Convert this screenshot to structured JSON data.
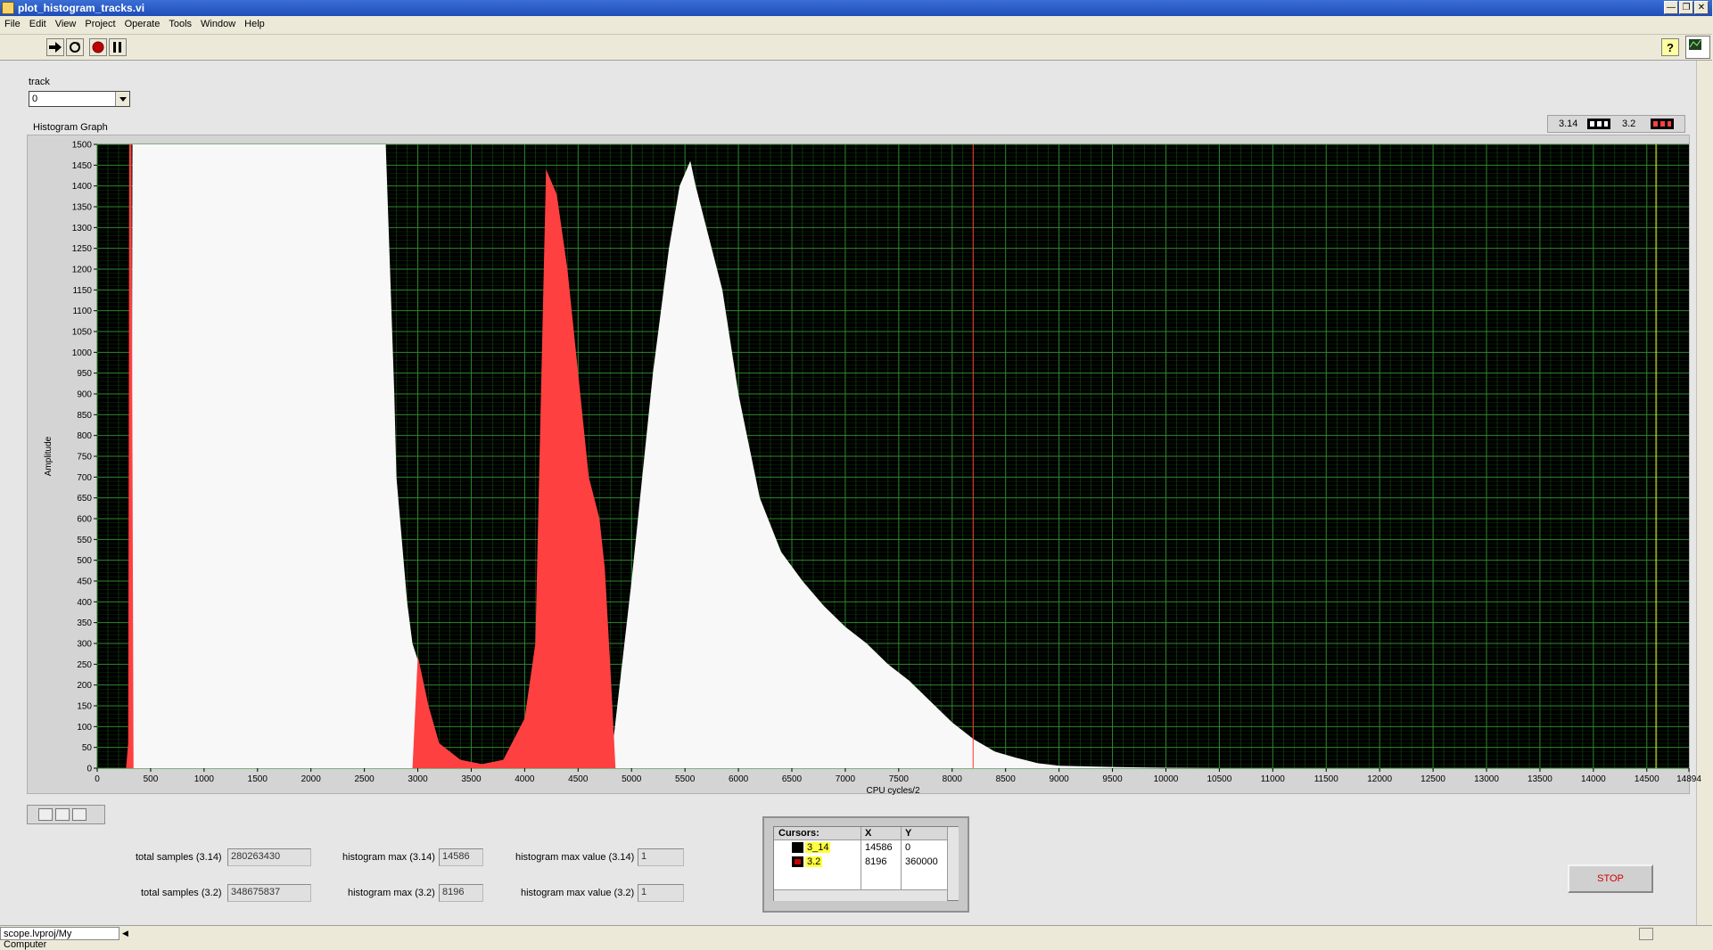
{
  "window": {
    "title": "plot_histogram_tracks.vi"
  },
  "menu": [
    "File",
    "Edit",
    "View",
    "Project",
    "Operate",
    "Tools",
    "Window",
    "Help"
  ],
  "track": {
    "label": "track",
    "value": "0"
  },
  "graph": {
    "label": "Histogram Graph",
    "legend": [
      {
        "name": "3.14"
      },
      {
        "name": "3.2"
      }
    ],
    "colors": {
      "bg": "#000000",
      "grid": "#1f6b1f",
      "s314": "#f8f8f8",
      "s32": "#ff4040",
      "cursor1": "#ff3030",
      "cursor2": "#ffff33"
    }
  },
  "chart_data": {
    "type": "bar",
    "title": "Histogram Graph",
    "xlabel": "CPU cycles/2",
    "ylabel": "Amplitude",
    "xlim": [
      0,
      14894
    ],
    "ylim": [
      0,
      1500
    ],
    "x_ticks": [
      "0",
      "500",
      "1000",
      "1500",
      "2000",
      "2500",
      "3000",
      "3500",
      "4000",
      "4500",
      "5000",
      "5500",
      "6000",
      "6500",
      "7000",
      "7500",
      "8000",
      "8500",
      "9000",
      "9500",
      "10000",
      "10500",
      "11000",
      "11500",
      "12000",
      "12500",
      "13000",
      "13500",
      "14000",
      "14500",
      "14894"
    ],
    "y_ticks": [
      "0",
      "50",
      "100",
      "150",
      "200",
      "250",
      "300",
      "350",
      "400",
      "450",
      "500",
      "550",
      "600",
      "650",
      "700",
      "750",
      "800",
      "850",
      "900",
      "950",
      "1000",
      "1050",
      "1100",
      "1150",
      "1200",
      "1250",
      "1300",
      "1350",
      "1400",
      "1450",
      "1500"
    ],
    "series": [
      {
        "name": "3.14",
        "x": [
          300,
          310,
          320,
          330,
          340,
          1000,
          2000,
          2700,
          2740,
          2780,
          2800,
          2900,
          2950,
          3000,
          3200,
          3400,
          3600,
          3800,
          4000,
          4200,
          4400,
          4600,
          4800,
          5000,
          5200,
          5350,
          5450,
          5550,
          5600,
          5700,
          5850,
          6000,
          6200,
          6400,
          6600,
          6800,
          7000,
          7200,
          7400,
          7600,
          7800,
          8000,
          8200,
          8400,
          8600,
          8800,
          9000,
          9500,
          10000,
          10500,
          11000,
          11500,
          12000,
          12500,
          13000,
          13500,
          14000,
          14500,
          14894
        ],
        "values": [
          0,
          60,
          200,
          1500,
          1500,
          1500,
          1500,
          1500,
          1200,
          900,
          700,
          400,
          300,
          260,
          0,
          0,
          0,
          0,
          0,
          0,
          0,
          0,
          0,
          450,
          950,
          1250,
          1400,
          1460,
          1400,
          1300,
          1150,
          900,
          650,
          520,
          450,
          390,
          340,
          300,
          250,
          210,
          160,
          110,
          70,
          40,
          25,
          12,
          6,
          3,
          1,
          0,
          0,
          0,
          0,
          0,
          0,
          0,
          0,
          0,
          0
        ]
      },
      {
        "name": "3.2",
        "x": [
          0,
          270,
          290,
          300,
          320,
          340,
          2950,
          3000,
          3100,
          3200,
          3400,
          3600,
          3800,
          4000,
          4100,
          4200,
          4300,
          4400,
          4500,
          4600,
          4700,
          4750,
          4800,
          4850,
          5000
        ],
        "values": [
          0,
          0,
          60,
          1500,
          1500,
          0,
          0,
          270,
          150,
          60,
          20,
          10,
          20,
          120,
          300,
          1440,
          1380,
          1200,
          950,
          700,
          600,
          480,
          250,
          0,
          0
        ]
      }
    ],
    "cursors": [
      {
        "name": "3_14",
        "x": 14586,
        "y": 0
      },
      {
        "name": "3.2",
        "x": 8196,
        "y": 360000
      }
    ]
  },
  "cursors_panel": {
    "title": "Cursors:",
    "col_x": "X",
    "col_y": "Y",
    "rows": [
      {
        "name": "3_14",
        "x": "14586",
        "y": "0"
      },
      {
        "name": "3.2",
        "x": "8196",
        "y": "360000"
      }
    ]
  },
  "indicators": {
    "total_314": {
      "label": "total samples (3.14)",
      "value": "280263430"
    },
    "total_32": {
      "label": "total samples (3.2)",
      "value": "348675837"
    },
    "hmax_314": {
      "label": "histogram max (3.14)",
      "value": "14586"
    },
    "hmax_32": {
      "label": "histogram max (3.2)",
      "value": "8196"
    },
    "hmaxval_314": {
      "label": "histogram max value (3.14)",
      "value": "1"
    },
    "hmaxval_32": {
      "label": "histogram max value (3.2)",
      "value": "1"
    }
  },
  "stop_button": "STOP",
  "status": {
    "path": "scope.lvproj/My Computer"
  }
}
